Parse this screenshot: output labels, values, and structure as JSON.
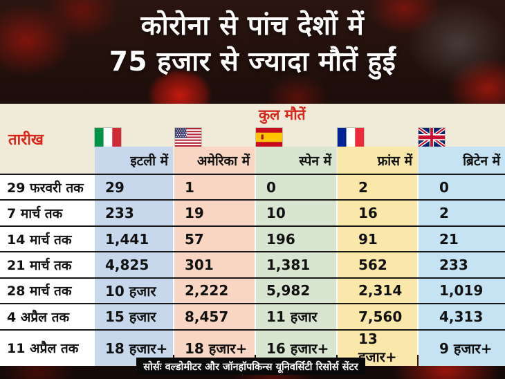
{
  "title": {
    "line1": "कोरोना से पांच देशों में",
    "line2": "75 हजार से ज्यादा मौतें हुईं"
  },
  "table": {
    "corner_label": "तारीख",
    "group_header": "कुल मौतें",
    "columns": [
      {
        "label": "इटली में",
        "flag": "italy-flag",
        "color": "#c8d8ec"
      },
      {
        "label": "अमेरिका में",
        "flag": "usa-flag",
        "color": "#f8d6c3"
      },
      {
        "label": "स्पेन में",
        "flag": "spain-flag",
        "color": "#d8e5d1"
      },
      {
        "label": "फ्रांस में",
        "flag": "france-flag",
        "color": "#fae8aa"
      },
      {
        "label": "ब्रिटेन में",
        "flag": "uk-flag",
        "color": "#c5e3f3"
      }
    ],
    "rows": [
      {
        "date": "29 फरवरी तक",
        "values": [
          "29",
          "1",
          "0",
          "2",
          "0"
        ]
      },
      {
        "date": "7 मार्च तक",
        "values": [
          "233",
          "19",
          "10",
          "16",
          "2"
        ]
      },
      {
        "date": "14 मार्च तक",
        "values": [
          "1,441",
          "57",
          "196",
          "91",
          "21"
        ]
      },
      {
        "date": "21 मार्च तक",
        "values": [
          "4,825",
          "301",
          "1,381",
          "562",
          "233"
        ]
      },
      {
        "date": "28 मार्च तक",
        "values": [
          "10 हजार",
          "2,222",
          "5,982",
          "2,314",
          "1,019"
        ]
      },
      {
        "date": "4 अप्रैल तक",
        "values": [
          "15 हजार",
          "8,457",
          "11 हजार",
          "7,560",
          "4,313"
        ]
      },
      {
        "date": "11 अप्रैल तक",
        "values": [
          "18 हजार+",
          "18 हजार+",
          "16 हजार+",
          "13 हजार+",
          "9 हजार+"
        ]
      }
    ]
  },
  "footer": {
    "source": "सोर्सः वल्डोमीटर और जॉनहॉपकिन्स यूनिवर्सिटी रिसोर्स सेंटर"
  },
  "colors": {
    "accent_red": "#d6261d",
    "table_bg": "#f0ebd8",
    "row_line": "#161616",
    "source_bar_bg": "#0a0a0a"
  },
  "chart_data": {
    "type": "table",
    "title": "कोरोना से पांच देशों में 75 हजार से ज्यादा मौतें हुईं",
    "group_header": "कुल मौतें",
    "columns": [
      "तारीख",
      "इटली में",
      "अमेरिका में",
      "स्पेन में",
      "फ्रांस में",
      "ब्रिटेन में"
    ],
    "rows": [
      [
        "29 फरवरी तक",
        "29",
        "1",
        "0",
        "2",
        "0"
      ],
      [
        "7 मार्च तक",
        "233",
        "19",
        "10",
        "16",
        "2"
      ],
      [
        "14 मार्च तक",
        "1,441",
        "57",
        "196",
        "91",
        "21"
      ],
      [
        "21 मार्च तक",
        "4,825",
        "301",
        "1,381",
        "562",
        "233"
      ],
      [
        "28 मार्च तक",
        "10 हजार",
        "2,222",
        "5,982",
        "2,314",
        "1,019"
      ],
      [
        "4 अप्रैल तक",
        "15 हजार",
        "8,457",
        "11 हजार",
        "7,560",
        "4,313"
      ],
      [
        "11 अप्रैल तक",
        "18 हजार+",
        "18 हजार+",
        "16 हजार+",
        "13 हजार+",
        "9 हजार+"
      ]
    ],
    "source": "सोर्सः वल्डोमीटर और जॉनहॉपकिन्स यूनिवर्सिटी रिसोर्स सेंटर"
  }
}
